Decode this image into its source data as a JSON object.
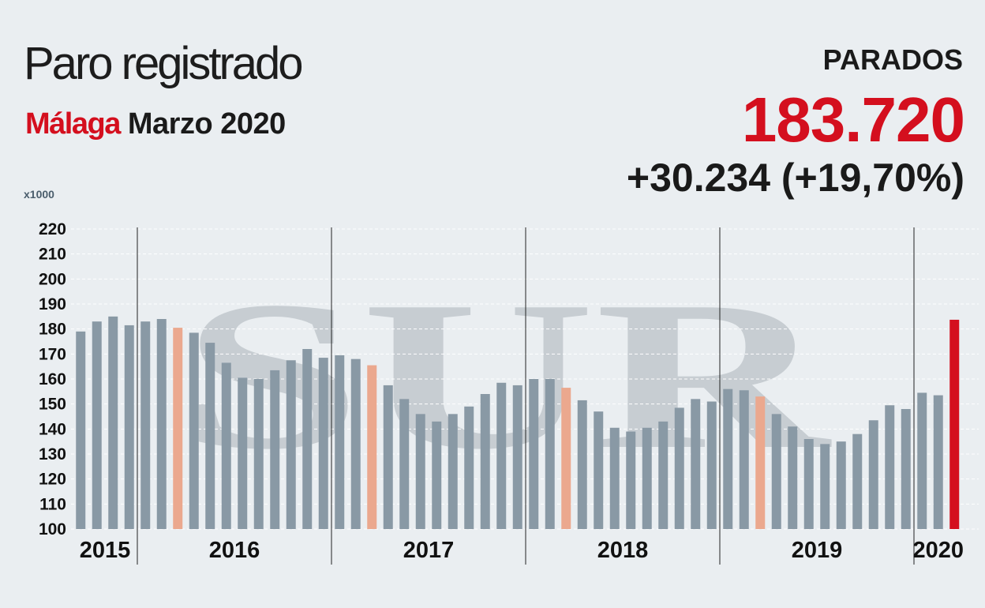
{
  "header": {
    "title": "Paro registrado",
    "place": "Málaga",
    "period": "Marzo 2020"
  },
  "kpi": {
    "label": "PARADOS",
    "value": "183.720",
    "change": "+30.234 (+19,70%)"
  },
  "unit_label": "x1000",
  "watermark": "SUR",
  "colors": {
    "bar": "#8999a5",
    "march": "#eba88e",
    "current": "#d40f1e",
    "accent": "#d40f1e"
  },
  "chart_data": {
    "type": "bar",
    "ylim": [
      100,
      220
    ],
    "yticks": [
      100,
      110,
      120,
      130,
      140,
      150,
      160,
      170,
      180,
      190,
      200,
      210,
      220
    ],
    "grid": true,
    "years": [
      {
        "label": "2015",
        "start": 0,
        "count": 4
      },
      {
        "label": "2016",
        "start": 4,
        "count": 12
      },
      {
        "label": "2017",
        "start": 16,
        "count": 12
      },
      {
        "label": "2018",
        "start": 28,
        "count": 12
      },
      {
        "label": "2019",
        "start": 40,
        "count": 12
      },
      {
        "label": "2020",
        "start": 52,
        "count": 3
      }
    ],
    "values": [
      179.0,
      183.0,
      185.0,
      181.5,
      183.0,
      184.0,
      180.5,
      178.5,
      174.5,
      166.5,
      160.5,
      160.0,
      163.5,
      167.5,
      172.0,
      168.5,
      169.5,
      168.0,
      165.5,
      157.5,
      152.0,
      146.0,
      143.0,
      146.0,
      149.0,
      154.0,
      158.5,
      157.5,
      160.0,
      160.0,
      156.5,
      151.5,
      147.0,
      140.5,
      139.0,
      140.5,
      143.0,
      148.5,
      152.0,
      151.0,
      156.0,
      155.5,
      153.0,
      146.0,
      141.0,
      136.0,
      134.0,
      135.0,
      138.0,
      143.5,
      149.5,
      148.0,
      154.5,
      153.5,
      183.7
    ],
    "march_indices": [
      6,
      18,
      30,
      42
    ],
    "current_index": 54
  }
}
